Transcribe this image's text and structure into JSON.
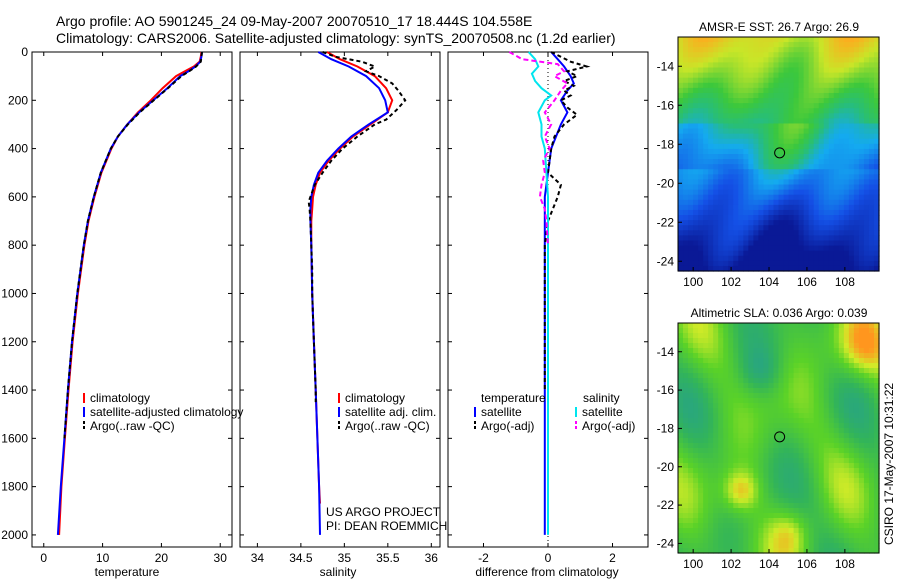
{
  "header": {
    "line1": "Argo profile: AO 5901245_24 09-May-2007 20070510_17 18.444S 104.558E",
    "line2": "Climatology: CARS2006. Satellite-adjusted climatology: synTS_20070508.nc (1.2d earlier)"
  },
  "colors": {
    "clim": "#ff0000",
    "sat": "#0000ff",
    "argo": "#000000",
    "sal_sat": "#00e5ee",
    "sal_argo": "#ff00ff"
  },
  "chart_data": [
    {
      "type": "line",
      "name": "temperature-profile",
      "xlabel": "temperature",
      "xlim": [
        -2,
        32
      ],
      "ylim": [
        2050,
        0
      ],
      "xticks": [
        0,
        10,
        20,
        30
      ],
      "yticks": [
        0,
        200,
        400,
        600,
        800,
        1000,
        1200,
        1400,
        1600,
        1800,
        2000
      ],
      "legend": [
        "climatology",
        "satellite-adjusted climatology",
        "Argo(..raw -QC)"
      ],
      "series": [
        {
          "name": "climatology",
          "color": "#ff0000",
          "dash": "",
          "depth": [
            0,
            20,
            40,
            60,
            80,
            100,
            150,
            200,
            250,
            300,
            350,
            400,
            500,
            600,
            700,
            800,
            1000,
            1200,
            1400,
            1600,
            1800,
            2000
          ],
          "values": [
            26.8,
            26.7,
            26.5,
            25.5,
            24,
            22.5,
            20.2,
            18.2,
            16,
            14.2,
            12.6,
            11.5,
            9.8,
            8.6,
            7.6,
            6.9,
            5.8,
            4.9,
            4.2,
            3.6,
            3.0,
            2.6
          ]
        },
        {
          "name": "satellite-adjusted climatology",
          "color": "#0000ff",
          "dash": "",
          "depth": [
            0,
            20,
            40,
            60,
            80,
            100,
            150,
            200,
            250,
            300,
            350,
            400,
            500,
            600,
            700,
            800,
            1000,
            1200,
            1400,
            1600,
            1800,
            2000
          ],
          "values": [
            26.9,
            26.8,
            26.6,
            25.8,
            24.6,
            23.2,
            21,
            18.6,
            16.2,
            14.2,
            12.6,
            11.4,
            9.7,
            8.5,
            7.5,
            6.8,
            5.7,
            4.8,
            4.1,
            3.5,
            2.9,
            2.4
          ]
        },
        {
          "name": "Argo(..raw -QC)",
          "color": "#000000",
          "dash": "4,3",
          "depth": [
            0,
            20,
            40,
            60,
            80,
            100,
            150,
            200,
            250,
            300,
            350,
            400,
            500,
            600,
            700,
            800,
            1000,
            1200,
            1400,
            1600
          ],
          "values": [
            26.9,
            26.8,
            26.7,
            25.9,
            24.7,
            23.4,
            21.1,
            18.7,
            16.3,
            14.3,
            12.6,
            11.4,
            9.7,
            8.5,
            7.5,
            6.8,
            5.7,
            4.8,
            4.1,
            3.5
          ]
        }
      ]
    },
    {
      "type": "line",
      "name": "salinity-profile",
      "xlabel": "salinity",
      "xlim": [
        33.8,
        36.1
      ],
      "ylim": [
        2050,
        0
      ],
      "xticks": [
        34,
        34.5,
        35,
        35.5,
        36
      ],
      "legend": [
        "climatology",
        "satellite adj. clim.",
        "Argo(..raw -QC)"
      ],
      "annotation": [
        "US ARGO PROJECT",
        "PI: DEAN ROEMMICH"
      ],
      "series": [
        {
          "name": "climatology",
          "color": "#ff0000",
          "dash": "",
          "depth": [
            0,
            30,
            60,
            100,
            150,
            200,
            250,
            300,
            350,
            400,
            450,
            500,
            550,
            600,
            650,
            700,
            800,
            1000,
            1200,
            1400,
            1600,
            1800,
            1870
          ],
          "values": [
            34.8,
            34.95,
            35.15,
            35.35,
            35.48,
            35.55,
            35.5,
            35.3,
            35.1,
            34.95,
            34.82,
            34.72,
            34.67,
            34.64,
            34.63,
            34.62,
            34.62,
            34.63,
            34.65,
            34.67,
            34.69,
            34.71,
            34.72
          ]
        },
        {
          "name": "satellite adj. clim.",
          "color": "#0000ff",
          "dash": "",
          "depth": [
            0,
            30,
            60,
            100,
            150,
            200,
            250,
            300,
            350,
            400,
            450,
            500,
            550,
            600,
            650,
            700,
            800,
            1000,
            1200,
            1400,
            1600,
            1800,
            2000
          ],
          "values": [
            34.7,
            34.85,
            35.05,
            35.25,
            35.4,
            35.47,
            35.5,
            35.28,
            35.08,
            34.93,
            34.8,
            34.7,
            34.65,
            34.62,
            34.61,
            34.61,
            34.62,
            34.63,
            34.65,
            34.67,
            34.69,
            34.71,
            34.72
          ]
        },
        {
          "name": "Argo(..raw -QC)",
          "color": "#000000",
          "dash": "4,3",
          "depth": [
            0,
            20,
            40,
            60,
            80,
            100,
            130,
            160,
            200,
            240,
            280,
            300,
            350,
            400,
            450,
            500,
            550,
            600,
            620,
            650,
            700,
            800,
            900,
            1000,
            1100,
            1200,
            1300,
            1400,
            1450
          ],
          "values": [
            34.75,
            34.9,
            35.2,
            35.35,
            35.25,
            35.4,
            35.55,
            35.62,
            35.7,
            35.6,
            35.48,
            35.35,
            35.15,
            34.98,
            34.85,
            34.75,
            34.66,
            34.61,
            34.59,
            34.6,
            34.61,
            34.62,
            34.63,
            34.63,
            34.64,
            34.65,
            34.66,
            34.67,
            34.67
          ]
        }
      ]
    },
    {
      "type": "line",
      "name": "difference-profile",
      "xlabel": "difference from climatology",
      "xlim": [
        -3.1,
        3.1
      ],
      "ylim": [
        2050,
        0
      ],
      "xticks": [
        -2,
        0,
        2
      ],
      "legend_temp_title": "temperature",
      "legend_sal_title": "salinity",
      "legend": [
        "satellite",
        "Argo(-adj)",
        "satellite",
        "Argo(-adj)"
      ],
      "series": [
        {
          "name": "temperature satellite",
          "color": "#0000ff",
          "dash": "",
          "depth": [
            0,
            30,
            60,
            80,
            100,
            130,
            160,
            200,
            250,
            300,
            400,
            500,
            600,
            800,
            1000,
            1200,
            1400,
            1600,
            1800,
            2000
          ],
          "values": [
            0.1,
            0.3,
            0.5,
            0.6,
            0.7,
            0.8,
            0.6,
            0.4,
            0.6,
            0.4,
            0.1,
            0.0,
            -0.1,
            -0.1,
            -0.1,
            -0.1,
            -0.1,
            -0.1,
            -0.1,
            -0.1
          ]
        },
        {
          "name": "temperature Argo(-adj)",
          "color": "#000000",
          "dash": "4,3",
          "depth": [
            0,
            20,
            40,
            60,
            80,
            100,
            120,
            140,
            160,
            180,
            200,
            230,
            260,
            300,
            350,
            400,
            500,
            550,
            600,
            700,
            800,
            1000,
            1200,
            1400
          ],
          "values": [
            0.1,
            0.4,
            0.7,
            1.2,
            0.6,
            0.9,
            0.5,
            0.8,
            0.5,
            0.7,
            0.4,
            0.6,
            0.9,
            0.5,
            0.2,
            0.1,
            0.0,
            0.4,
            0.3,
            0.0,
            -0.1,
            -0.1,
            -0.1,
            -0.1
          ]
        },
        {
          "name": "salinity satellite",
          "color": "#00e5ee",
          "dash": "",
          "depth": [
            0,
            30,
            60,
            90,
            120,
            150,
            180,
            200,
            250,
            300,
            350,
            400,
            500,
            600,
            800,
            1000,
            1200,
            1400,
            1600,
            1800,
            2000
          ],
          "values": [
            -0.6,
            -0.4,
            -0.3,
            -0.5,
            -0.4,
            -0.2,
            0.1,
            -0.1,
            -0.3,
            -0.2,
            -0.2,
            -0.1,
            -0.05,
            0.0,
            0.0,
            0.0,
            0.0,
            0.0,
            0.0,
            0.0,
            0.0
          ]
        },
        {
          "name": "salinity Argo(-adj)",
          "color": "#ff00ff",
          "dash": "5,3",
          "depth": [
            0,
            30,
            50,
            80,
            100,
            130,
            160,
            200,
            250,
            300,
            350,
            400,
            450,
            500,
            550,
            600,
            650,
            700,
            800
          ],
          "values": [
            -1.2,
            -0.8,
            0.3,
            0.5,
            0.2,
            0.6,
            0.4,
            0.2,
            -0.1,
            0.1,
            -0.1,
            0.05,
            -0.15,
            -0.1,
            -0.2,
            -0.25,
            -0.1,
            -0.05,
            0.0
          ]
        }
      ]
    },
    {
      "type": "heatmap",
      "name": "sst-map",
      "title": "AMSR-E SST: 26.7 Argo: 26.9",
      "xticks": [
        100,
        102,
        104,
        106,
        108
      ],
      "yticks": [
        -14,
        -16,
        -18,
        -20,
        -22,
        -24
      ],
      "xlim": [
        99.2,
        109.8
      ],
      "ylim": [
        -24.5,
        -12.5
      ],
      "marker": [
        104.56,
        -18.44
      ]
    },
    {
      "type": "heatmap",
      "name": "sla-map",
      "title": "Altimetric SLA: 0.036 Argo: 0.039",
      "xticks": [
        100,
        102,
        104,
        106,
        108
      ],
      "yticks": [
        -14,
        -16,
        -18,
        -20,
        -22,
        -24
      ],
      "xlim": [
        99.2,
        109.8
      ],
      "ylim": [
        -24.5,
        -12.5
      ],
      "marker": [
        104.56,
        -18.44
      ]
    }
  ],
  "credit": "CSIRO 17-May-2007 10:31:22"
}
